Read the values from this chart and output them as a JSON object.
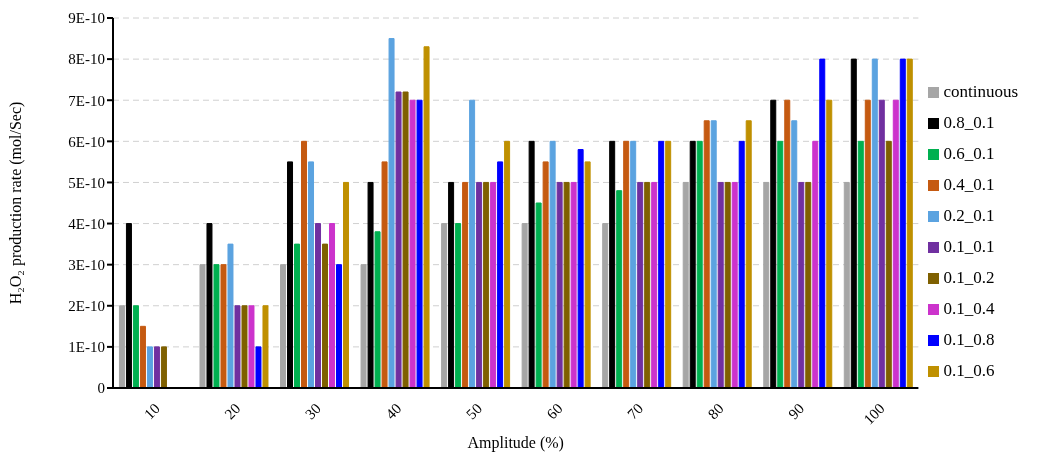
{
  "chart_data": {
    "type": "bar",
    "xlabel": "Amplitude (%)",
    "ylabel": "H₂O₂ production rate (mol/Sec)",
    "categories": [
      "10",
      "20",
      "30",
      "40",
      "50",
      "60",
      "70",
      "80",
      "90",
      "100"
    ],
    "series": [
      {
        "name": "continuous",
        "color": "#a6a6a6",
        "values": [
          2e-10,
          3e-10,
          3e-10,
          3e-10,
          4e-10,
          4e-10,
          4e-10,
          5e-10,
          5e-10,
          5e-10
        ]
      },
      {
        "name": "0.8_0.1",
        "color": "#000000",
        "values": [
          4e-10,
          4e-10,
          5.5e-10,
          5e-10,
          5e-10,
          6e-10,
          6e-10,
          6e-10,
          7e-10,
          8e-10
        ]
      },
      {
        "name": "0.6_0.1",
        "color": "#00b050",
        "values": [
          2e-10,
          3e-10,
          3.5e-10,
          3.8e-10,
          4e-10,
          4.5e-10,
          4.8e-10,
          6e-10,
          6e-10,
          6e-10
        ]
      },
      {
        "name": "0.4_0.1",
        "color": "#c55a11",
        "values": [
          1.5e-10,
          3e-10,
          6e-10,
          5.5e-10,
          5e-10,
          5.5e-10,
          6e-10,
          6.5e-10,
          7e-10,
          7e-10
        ]
      },
      {
        "name": "0.2_0.1",
        "color": "#5ba3e0",
        "values": [
          1e-10,
          3.5e-10,
          5.5e-10,
          8.5e-10,
          7e-10,
          6e-10,
          6e-10,
          6.5e-10,
          6.5e-10,
          8e-10
        ]
      },
      {
        "name": "0.1_0.1",
        "color": "#7030a0",
        "values": [
          1e-10,
          2e-10,
          4e-10,
          7.2e-10,
          5e-10,
          5e-10,
          5e-10,
          5e-10,
          5e-10,
          7e-10
        ]
      },
      {
        "name": "0.1_0.2",
        "color": "#7f6000",
        "values": [
          1e-10,
          2e-10,
          3.5e-10,
          7.2e-10,
          5e-10,
          5e-10,
          5e-10,
          5e-10,
          5e-10,
          6e-10
        ]
      },
      {
        "name": "0.1_0.4",
        "color": "#cc33cc",
        "values": [
          null,
          2e-10,
          4e-10,
          7e-10,
          5e-10,
          5e-10,
          5e-10,
          5e-10,
          6e-10,
          7e-10
        ]
      },
      {
        "name": "0.1_0.8",
        "color": "#0000ff",
        "values": [
          null,
          1e-10,
          3e-10,
          7e-10,
          5.5e-10,
          5.8e-10,
          6e-10,
          6e-10,
          8e-10,
          8e-10
        ]
      },
      {
        "name": "0.1_0.6",
        "color": "#bf9000",
        "values": [
          null,
          2e-10,
          5e-10,
          8.3e-10,
          6e-10,
          5.5e-10,
          6e-10,
          6.5e-10,
          7e-10,
          8e-10
        ]
      }
    ],
    "ylim": [
      0,
      9e-10
    ],
    "yticks": [
      0,
      {
        "value": 1e-10,
        "label": "1E-10"
      },
      {
        "value": 2e-10,
        "label": "2E-10"
      },
      {
        "value": 3e-10,
        "label": "3E-10"
      },
      {
        "value": 4e-10,
        "label": "4E-10"
      },
      {
        "value": 5e-10,
        "label": "5E-10"
      },
      {
        "value": 6e-10,
        "label": "6E-10"
      },
      {
        "value": 7e-10,
        "label": "7E-10"
      },
      {
        "value": 8e-10,
        "label": "8E-10"
      },
      {
        "value": 9e-10,
        "label": "9E-10"
      }
    ],
    "grid": "y",
    "legend": "right"
  }
}
